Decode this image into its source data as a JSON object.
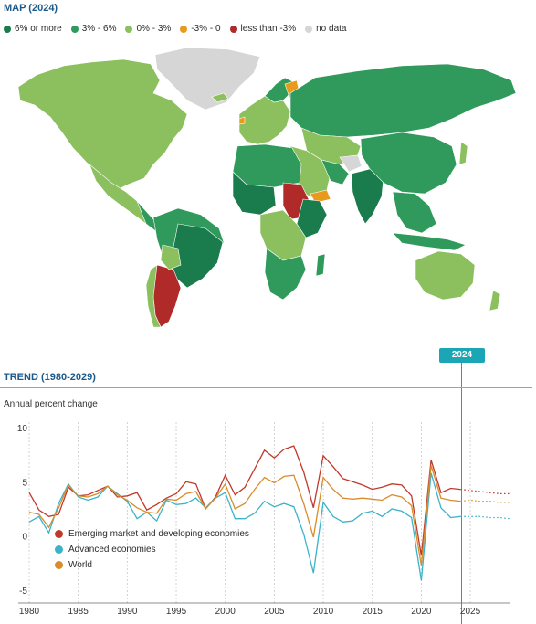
{
  "map": {
    "title": "MAP (2024)",
    "legend": [
      {
        "label": "6% or more",
        "color": "#1a7b4c"
      },
      {
        "label": "3% - 6%",
        "color": "#2f9a5b"
      },
      {
        "label": "0% - 3%",
        "color": "#8cbf5e"
      },
      {
        "label": "-3% - 0",
        "color": "#e89a1d"
      },
      {
        "label": "less than -3%",
        "color": "#b12a2a"
      },
      {
        "label": "no data",
        "color": "#d6d6d6"
      }
    ]
  },
  "trend": {
    "title": "TREND (1980-2029)",
    "ylabel": "Annual percent change",
    "marker_year": "2024",
    "legend": [
      {
        "label": "Emerging market and developing economies",
        "color": "#c0392b"
      },
      {
        "label": "Advanced economies",
        "color": "#3bb3c9"
      },
      {
        "label": "World",
        "color": "#d98c2a"
      }
    ]
  },
  "chart_data": {
    "type": "line",
    "x": [
      1980,
      1981,
      1982,
      1983,
      1984,
      1985,
      1986,
      1987,
      1988,
      1989,
      1990,
      1991,
      1992,
      1993,
      1994,
      1995,
      1996,
      1997,
      1998,
      1999,
      2000,
      2001,
      2002,
      2003,
      2004,
      2005,
      2006,
      2007,
      2008,
      2009,
      2010,
      2011,
      2012,
      2013,
      2014,
      2015,
      2016,
      2017,
      2018,
      2019,
      2020,
      2021,
      2022,
      2023,
      2024,
      2025,
      2026,
      2027,
      2028,
      2029
    ],
    "series": [
      {
        "name": "Emerging market and developing economies",
        "values": [
          4.0,
          2.4,
          1.8,
          2.0,
          4.5,
          3.7,
          3.8,
          4.2,
          4.6,
          3.6,
          3.7,
          4.0,
          2.4,
          2.9,
          3.5,
          3.9,
          5.0,
          4.8,
          2.5,
          3.6,
          5.6,
          3.8,
          4.5,
          6.2,
          7.9,
          7.2,
          8.0,
          8.3,
          5.9,
          2.6,
          7.4,
          6.4,
          5.3,
          5.0,
          4.7,
          4.3,
          4.5,
          4.8,
          4.7,
          3.7,
          -1.8,
          7.0,
          4.0,
          4.4,
          4.3,
          4.2,
          4.1,
          4.0,
          3.9,
          3.9
        ]
      },
      {
        "name": "Advanced economies",
        "values": [
          1.3,
          1.8,
          0.3,
          3.0,
          4.8,
          3.6,
          3.3,
          3.6,
          4.6,
          3.9,
          3.2,
          1.6,
          2.2,
          1.4,
          3.3,
          2.9,
          3.0,
          3.5,
          2.6,
          3.5,
          4.0,
          1.6,
          1.6,
          2.1,
          3.2,
          2.7,
          3.0,
          2.7,
          0.2,
          -3.4,
          3.1,
          1.8,
          1.3,
          1.4,
          2.1,
          2.3,
          1.8,
          2.5,
          2.3,
          1.7,
          -4.1,
          5.8,
          2.6,
          1.7,
          1.8,
          1.8,
          1.8,
          1.7,
          1.7,
          1.6
        ]
      },
      {
        "name": "World",
        "values": [
          2.2,
          2.0,
          0.8,
          2.6,
          4.7,
          3.7,
          3.6,
          3.9,
          4.6,
          3.8,
          3.3,
          2.6,
          2.2,
          2.1,
          3.4,
          3.3,
          3.9,
          4.1,
          2.5,
          3.5,
          4.8,
          2.5,
          3.0,
          4.3,
          5.4,
          4.9,
          5.5,
          5.6,
          3.0,
          -0.1,
          5.4,
          4.3,
          3.5,
          3.4,
          3.5,
          3.4,
          3.3,
          3.8,
          3.6,
          2.8,
          -2.7,
          6.5,
          3.5,
          3.3,
          3.2,
          3.3,
          3.2,
          3.2,
          3.1,
          3.1
        ]
      }
    ],
    "forecast_from": 2024,
    "xticks": [
      "1980",
      "1985",
      "1990",
      "1995",
      "2000",
      "2005",
      "2010",
      "2015",
      "2020",
      "2025"
    ],
    "yticks": [
      "10",
      "5",
      "0",
      "-5"
    ],
    "ylim": [
      -6,
      10.5
    ],
    "xlim": [
      1980,
      2029
    ],
    "grid": "vertical-dotted"
  }
}
